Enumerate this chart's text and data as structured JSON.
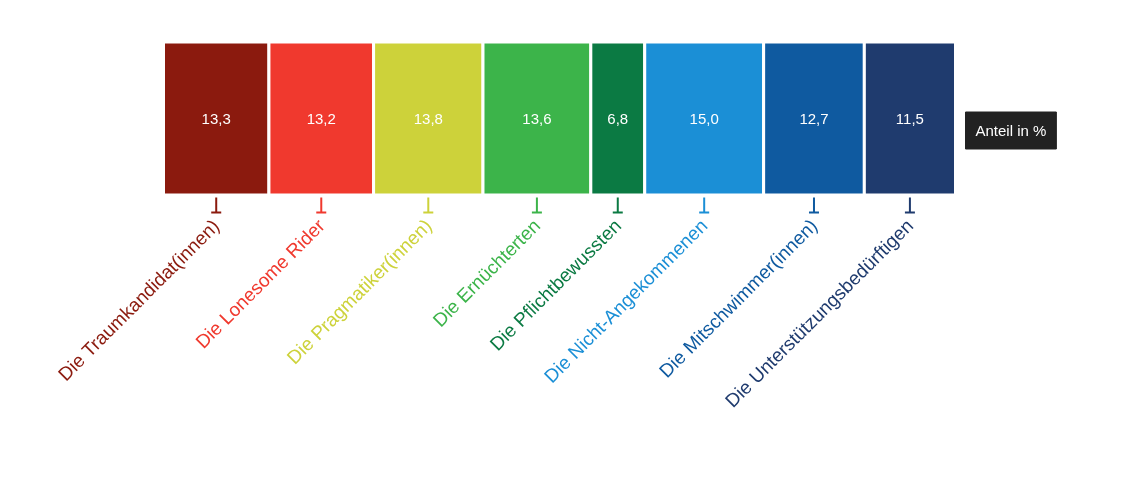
{
  "chart_data": {
    "type": "bar",
    "orientation": "horizontal",
    "stacked": true,
    "categories": [
      null
    ],
    "grid": false,
    "legend": "bottom",
    "annotations": [
      "Anteil in %"
    ],
    "series": [
      {
        "name": "Die Traumkandidat(innen)",
        "color": "#8b1a0e",
        "values": [
          13.3
        ],
        "value_labels": [
          "13,3"
        ]
      },
      {
        "name": "Die Lonesome Rider",
        "color": "#f0392e",
        "values": [
          13.2
        ],
        "value_labels": [
          "13,2"
        ]
      },
      {
        "name": "Die Pragmatiker(innen)",
        "color": "#cdd23a",
        "values": [
          13.8
        ],
        "value_labels": [
          "13,8"
        ]
      },
      {
        "name": "Die Ernüchterten",
        "color": "#3cb44a",
        "values": [
          13.6
        ],
        "value_labels": [
          "13,6"
        ]
      },
      {
        "name": "Die Pflichtbewussten",
        "color": "#0b7a43",
        "values": [
          6.8
        ],
        "value_labels": [
          "6,8"
        ]
      },
      {
        "name": "Die Nicht-Angekommenen",
        "color": "#1b8fd6",
        "values": [
          15.0
        ],
        "value_labels": [
          "15,0"
        ]
      },
      {
        "name": "Die Mitschwimmer(innen)",
        "color": "#0f5aa0",
        "values": [
          12.7
        ],
        "value_labels": [
          "12,7"
        ]
      },
      {
        "name": "Die Unterstützungsbedürftigen",
        "color": "#1f3b6e",
        "values": [
          11.5
        ],
        "value_labels": [
          "11,5"
        ]
      }
    ]
  }
}
